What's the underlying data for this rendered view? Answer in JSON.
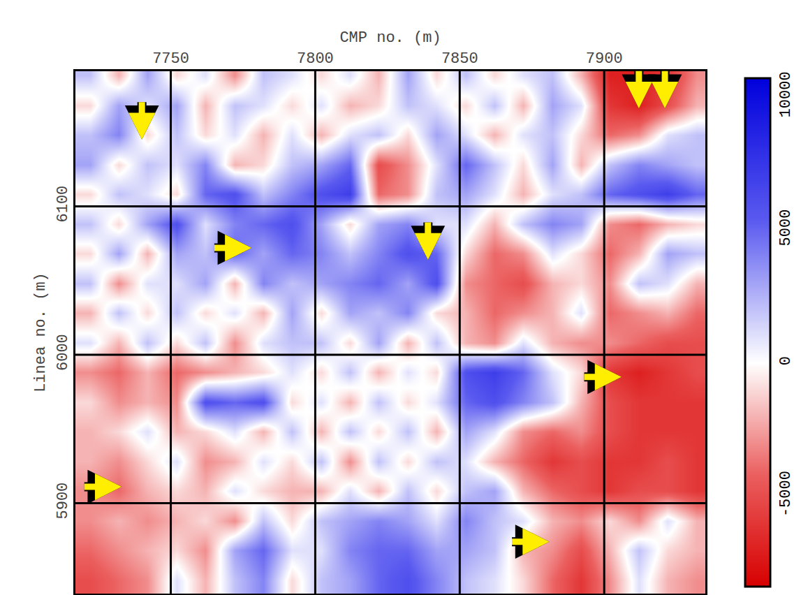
{
  "chart_data": {
    "type": "heatmap",
    "x_label": "CMP no. (m)",
    "y_label": "Linea no. (m)",
    "x": [
      7722,
      7732,
      7742,
      7752,
      7762,
      7772,
      7782,
      7792,
      7802,
      7812,
      7822,
      7832,
      7842,
      7852,
      7862,
      7872,
      7882,
      7892,
      7902,
      7912,
      7922,
      7932
    ],
    "y": [
      5848,
      5868,
      5888,
      5908,
      5928,
      5948,
      5968,
      5988,
      6008,
      6028,
      6048,
      6068,
      6088,
      6108,
      6128,
      6148,
      6168,
      6188
    ],
    "cells": [
      [
        -5000,
        -4000,
        -3000,
        1000,
        -2000,
        2000,
        4000,
        -1000,
        2000,
        3000,
        5000,
        6000,
        4000,
        2000,
        1000,
        -1000,
        -4000,
        -6000,
        -3000,
        1000,
        -2000,
        -3000
      ],
      [
        -4000,
        -3000,
        -2000,
        -1000,
        -3000,
        3000,
        5000,
        1000,
        1000,
        4000,
        5000,
        5000,
        3000,
        3000,
        2000,
        -2000,
        -3000,
        -5000,
        -2000,
        2000,
        -1000,
        -2000
      ],
      [
        -3000,
        -2000,
        -3000,
        -2000,
        -1000,
        -3000,
        2000,
        -1000,
        2000,
        3000,
        4000,
        3000,
        1000,
        4000,
        2000,
        1000,
        -2000,
        -3000,
        -1000,
        -3000,
        1000,
        -2000
      ],
      [
        -3000,
        -4000,
        -2000,
        -1000,
        -2000,
        1000,
        -1000,
        -2000,
        -2000,
        1000,
        -2000,
        2000,
        -1000,
        2000,
        3000,
        -2000,
        -4000,
        -5000,
        -6000,
        -5000,
        -5000,
        -6000
      ],
      [
        -2000,
        -3000,
        -1000,
        1000,
        -3000,
        -2000,
        1000,
        -1000,
        2000,
        -3000,
        2000,
        -1000,
        2000,
        1000,
        -2000,
        -4000,
        -6000,
        -5000,
        -6000,
        -6000,
        -5000,
        -6000
      ],
      [
        -2000,
        -1000,
        1000,
        -2000,
        -1000,
        1000,
        -2000,
        2000,
        -2000,
        2000,
        -1000,
        2000,
        -2000,
        3000,
        1000,
        -3000,
        -4000,
        -3000,
        -5000,
        -6000,
        -6000,
        -6000
      ],
      [
        -1000,
        -3000,
        -2000,
        -3000,
        6000,
        5000,
        6000,
        -1000,
        1000,
        -2000,
        2000,
        -1000,
        1000,
        5000,
        6000,
        4000,
        2000,
        -2000,
        -5000,
        -6000,
        -6000,
        -6000
      ],
      [
        -3000,
        -4000,
        -2000,
        -4000,
        -3000,
        -2000,
        -1000,
        1000,
        -1000,
        2000,
        -2000,
        1000,
        -1000,
        6000,
        7000,
        5000,
        1000,
        -1000,
        -6000,
        -7000,
        -6000,
        -5000
      ],
      [
        1000,
        -2000,
        2000,
        -1000,
        2000,
        -3000,
        1000,
        2000,
        2000,
        -1000,
        3000,
        -2000,
        2000,
        -2000,
        -3000,
        1000,
        -2000,
        -3000,
        -3000,
        -4000,
        -5000,
        -5000
      ],
      [
        -2000,
        2000,
        -1000,
        2000,
        -1000,
        1000,
        -2000,
        3000,
        -1000,
        3000,
        2000,
        4000,
        -1000,
        -2000,
        -4000,
        -3000,
        -2000,
        1000,
        -4000,
        -3000,
        -2000,
        -4000
      ],
      [
        2000,
        -3000,
        1000,
        1000,
        3000,
        -2000,
        4000,
        2000,
        3000,
        4000,
        5000,
        3000,
        6000,
        -3000,
        -4000,
        -5000,
        -2000,
        -1000,
        -3000,
        2000,
        1000,
        -2000
      ],
      [
        -1000,
        3000,
        -2000,
        3000,
        2000,
        5000,
        3000,
        5000,
        4000,
        2000,
        4000,
        6000,
        5000,
        -1000,
        -4000,
        -3000,
        1000,
        -1000,
        -4000,
        -2000,
        3000,
        2000
      ],
      [
        2000,
        -1000,
        3000,
        6000,
        1000,
        4000,
        5000,
        6000,
        3000,
        -1000,
        3000,
        4000,
        1000,
        1000,
        -2000,
        2000,
        4000,
        3000,
        -3000,
        -4000,
        -2000,
        -1000
      ],
      [
        -1000,
        2000,
        1000,
        -1000,
        5000,
        6000,
        2000,
        4000,
        6000,
        7000,
        -4000,
        -3000,
        2000,
        3000,
        1000,
        -2000,
        1000,
        2000,
        5000,
        6000,
        7000,
        5000
      ],
      [
        3000,
        -1000,
        2000,
        1000,
        4000,
        -2000,
        -1000,
        2000,
        3000,
        5000,
        -5000,
        -3000,
        1000,
        5000,
        2000,
        -1000,
        3000,
        -2000,
        2000,
        4000,
        3000,
        2000
      ],
      [
        2000,
        4000,
        -1000,
        2000,
        -1000,
        1000,
        -2000,
        1000,
        -2000,
        1000,
        2000,
        -1000,
        3000,
        1000,
        -2000,
        1000,
        2000,
        -1000,
        -4000,
        -3000,
        1000,
        2000
      ],
      [
        -1000,
        3000,
        1000,
        3000,
        -2000,
        2000,
        1000,
        -1000,
        1000,
        -2000,
        -1000,
        2000,
        1000,
        -1000,
        2000,
        -2000,
        3000,
        1000,
        -6000,
        -7000,
        -5000,
        -2000
      ],
      [
        2000,
        -2000,
        3000,
        -1000,
        1000,
        -3000,
        2000,
        1000,
        -1000,
        1000,
        -2000,
        3000,
        -1000,
        2000,
        -1000,
        1000,
        2000,
        -2000,
        -7000,
        -7000,
        -6000,
        -3000
      ]
    ],
    "xlim": [
      7717,
      7935
    ],
    "ylim": [
      5839,
      6191
    ],
    "xticks": [
      7750,
      7800,
      7850,
      7900
    ],
    "yticks": [
      5900,
      6000,
      6100
    ],
    "zlim": [
      -8400,
      10700
    ],
    "zticks": [
      -5000,
      0,
      5000,
      10000
    ],
    "grid": true,
    "arrows": [
      {
        "x": 7740,
        "y": 6145,
        "direction": "down"
      },
      {
        "x": 7912,
        "y": 6166,
        "direction": "down"
      },
      {
        "x": 7921,
        "y": 6166,
        "direction": "down"
      },
      {
        "x": 7778,
        "y": 6072,
        "direction": "right"
      },
      {
        "x": 7839,
        "y": 6064,
        "direction": "down"
      },
      {
        "x": 7906,
        "y": 5985,
        "direction": "right"
      },
      {
        "x": 7733,
        "y": 5911,
        "direction": "right"
      },
      {
        "x": 7881,
        "y": 5874,
        "direction": "right"
      }
    ]
  }
}
